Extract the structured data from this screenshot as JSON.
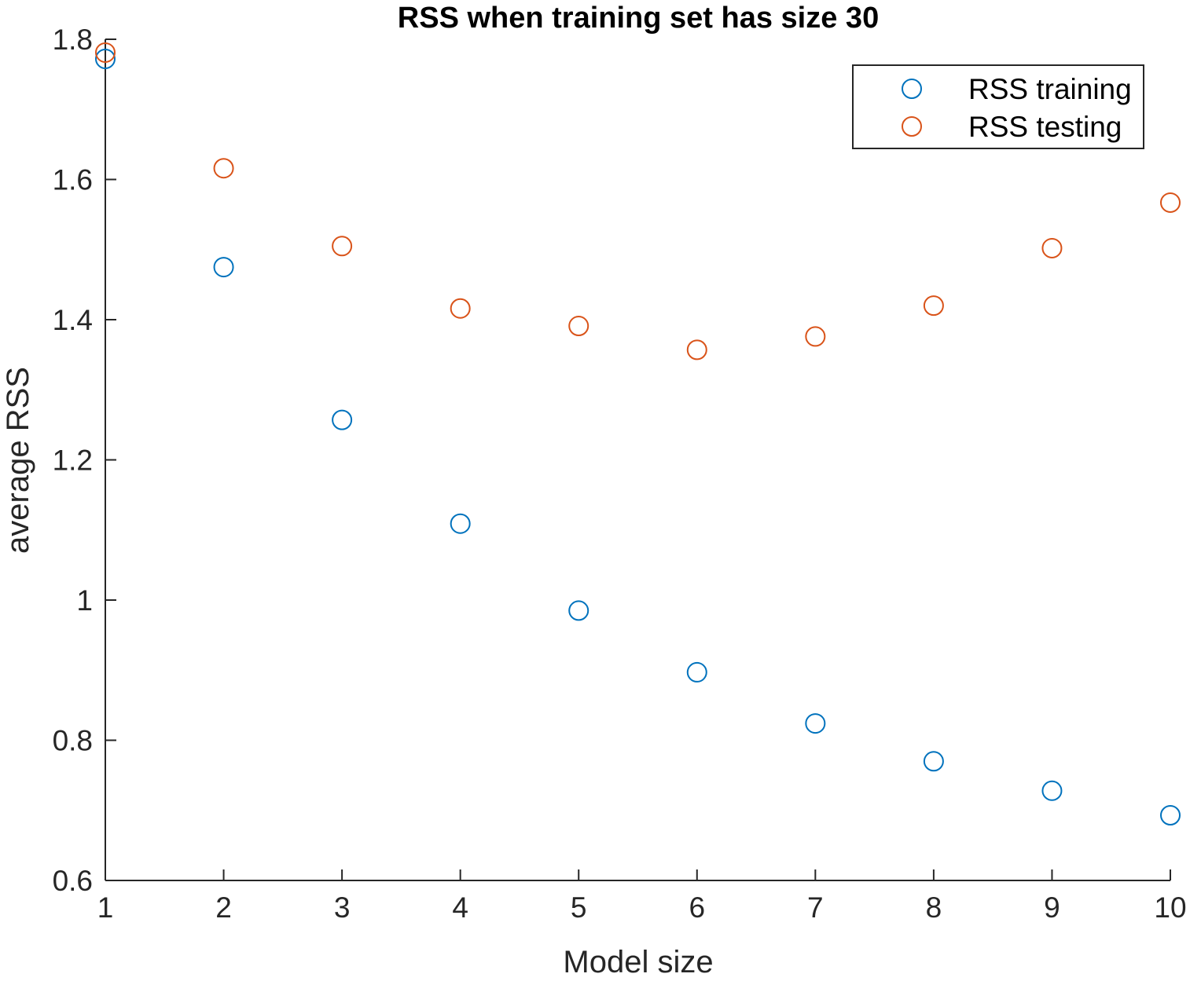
{
  "chart_data": {
    "type": "scatter",
    "title": "RSS when training set has size 30",
    "xlabel": "Model size",
    "ylabel": "average RSS",
    "xlim": [
      1,
      10
    ],
    "ylim": [
      0.6,
      1.8
    ],
    "xticks": [
      1,
      2,
      3,
      4,
      5,
      6,
      7,
      8,
      9,
      10
    ],
    "xtick_labels": [
      "1",
      "2",
      "3",
      "4",
      "5",
      "6",
      "7",
      "8",
      "9",
      "10"
    ],
    "yticks": [
      0.6,
      0.8,
      1.0,
      1.2,
      1.4,
      1.6,
      1.8
    ],
    "ytick_labels": [
      "0.6",
      "0.8",
      "1",
      "1.2",
      "1.4",
      "1.6",
      "1.8"
    ],
    "grid": false,
    "legend_position": "top-right",
    "marker": "open-circle",
    "x": [
      1,
      2,
      3,
      4,
      5,
      6,
      7,
      8,
      9,
      10
    ],
    "series": [
      {
        "name": "RSS training",
        "color": "#0072BD",
        "values": [
          1.772,
          1.475,
          1.257,
          1.109,
          0.985,
          0.897,
          0.824,
          0.77,
          0.728,
          0.693
        ]
      },
      {
        "name": "RSS testing",
        "color": "#D95319",
        "values": [
          1.781,
          1.616,
          1.505,
          1.416,
          1.391,
          1.357,
          1.376,
          1.42,
          1.502,
          1.567
        ]
      }
    ]
  }
}
